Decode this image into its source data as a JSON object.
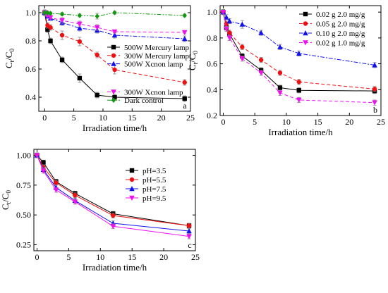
{
  "chart_data": [
    {
      "panel": "a",
      "type": "line",
      "ylabel_main": "C",
      "ylabel_sub1": "t",
      "ylabel_sep": "/C",
      "ylabel_sub2": "0",
      "xlabel": "Irradiation time/h",
      "xlim": [
        -1,
        25
      ],
      "ylim": [
        0.3,
        1.05
      ],
      "xticks": [
        0,
        5,
        10,
        15,
        20,
        25
      ],
      "yticks": [
        0.4,
        0.6,
        0.8,
        1.0
      ],
      "ytick_labels": [
        "0.4",
        "0.6",
        "0.8",
        "1.0"
      ],
      "legend_position": "right",
      "series": [
        {
          "name": "500W Mercury lamp",
          "color": "#000000",
          "marker": "square",
          "dash": "solid",
          "x": [
            0,
            0.5,
            1,
            3,
            6,
            9,
            12,
            24
          ],
          "y": [
            1.0,
            0.88,
            0.8,
            0.665,
            0.535,
            0.415,
            0.4,
            0.39
          ],
          "err": [
            0.02,
            0.02,
            0.02,
            0.02,
            0.03,
            0.02,
            0.02,
            0.02
          ]
        },
        {
          "name": "300W Mercury lamp",
          "color": "#ee1111",
          "marker": "circle",
          "dash": "dash",
          "x": [
            0,
            0.5,
            1,
            3,
            6,
            9,
            12,
            24
          ],
          "y": [
            1.0,
            0.91,
            0.895,
            0.84,
            0.795,
            0.7,
            0.595,
            0.505
          ],
          "err": [
            0.02,
            0.02,
            0.02,
            0.03,
            0.03,
            0.02,
            0.03,
            0.02
          ]
        },
        {
          "name": "500W Xcnon lamp",
          "color": "#1111ee",
          "marker": "triangle-up",
          "dash": "dashdot",
          "x": [
            0,
            0.5,
            1,
            3,
            6,
            9,
            12,
            24
          ],
          "y": [
            1.0,
            0.975,
            0.96,
            0.93,
            0.89,
            0.875,
            0.84,
            0.815
          ],
          "err": [
            0.02,
            0.01,
            0.01,
            0.02,
            0.02,
            0.02,
            0.02,
            0.02
          ]
        },
        {
          "name": "300W Xcnon lamp",
          "color": "#ee11ee",
          "marker": "triangle-down",
          "dash": "dash",
          "x": [
            0,
            0.5,
            1,
            3,
            6,
            9,
            12,
            24
          ],
          "y": [
            1.0,
            0.98,
            0.965,
            0.945,
            0.92,
            0.895,
            0.865,
            0.86
          ],
          "err": [
            0.02,
            0.01,
            0.01,
            0.02,
            0.02,
            0.02,
            0.01,
            0.01
          ]
        },
        {
          "name": "Dark control",
          "color": "#119911",
          "marker": "diamond",
          "dash": "dashdotdot",
          "x": [
            0,
            0.5,
            1,
            3,
            6,
            9,
            12,
            24
          ],
          "y": [
            1.0,
            1.0,
            0.995,
            0.99,
            0.98,
            0.975,
            1.0,
            0.98
          ],
          "err": [
            0.01,
            0.01,
            0.01,
            0.01,
            0.01,
            0.02,
            0.01,
            0.01
          ]
        }
      ]
    },
    {
      "panel": "b",
      "type": "line",
      "ylabel_main": "C",
      "ylabel_sub1": "t",
      "ylabel_sep": "/C",
      "ylabel_sub2": "0",
      "xlabel": "Irradiation time/h",
      "xlim": [
        -0.5,
        25
      ],
      "ylim": [
        0.2,
        1.05
      ],
      "xticks": [
        0,
        5,
        10,
        15,
        20,
        25
      ],
      "yticks": [
        0.2,
        0.4,
        0.6,
        0.8,
        1.0
      ],
      "ytick_labels": [
        "0.2",
        "0.4",
        "0.6",
        "0.8",
        "1.0"
      ],
      "legend_position": "top-right",
      "series": [
        {
          "name": "0.02 g 2.0 mg/g",
          "color": "#000000",
          "marker": "square",
          "dash": "solid",
          "x": [
            0,
            0.5,
            1,
            3,
            6,
            9,
            12,
            24
          ],
          "y": [
            1.0,
            0.88,
            0.83,
            0.66,
            0.55,
            0.415,
            0.395,
            0.39
          ],
          "err": [
            0.02,
            0.02,
            0.02,
            0.02,
            0.02,
            0.02,
            0.02,
            0.02
          ]
        },
        {
          "name": "0.05 g 2.0 mg/g",
          "color": "#ee1111",
          "marker": "circle",
          "dash": "dash",
          "x": [
            0,
            0.5,
            1,
            3,
            6,
            9,
            12,
            24
          ],
          "y": [
            1.0,
            0.91,
            0.84,
            0.73,
            0.63,
            0.53,
            0.46,
            0.405
          ],
          "err": [
            0.02,
            0.02,
            0.02,
            0.02,
            0.02,
            0.02,
            0.02,
            0.02
          ]
        },
        {
          "name": "0.10 g 2.0 mg/g",
          "color": "#1111ee",
          "marker": "triangle-up",
          "dash": "dashdot",
          "x": [
            0,
            0.5,
            1,
            3,
            6,
            9,
            12,
            24
          ],
          "y": [
            1.0,
            0.96,
            0.93,
            0.905,
            0.84,
            0.73,
            0.68,
            0.59
          ],
          "err": [
            0.02,
            0.02,
            0.02,
            0.03,
            0.02,
            0.02,
            0.02,
            0.02
          ]
        },
        {
          "name": "0.02 g 1.0 mg/g",
          "color": "#ee11ee",
          "marker": "triangle-down",
          "dash": "dash",
          "x": [
            0,
            0.5,
            1,
            3,
            6,
            9,
            12,
            24
          ],
          "y": [
            1.0,
            0.87,
            0.8,
            0.64,
            0.53,
            0.375,
            0.32,
            0.3
          ],
          "err": [
            0.02,
            0.02,
            0.02,
            0.02,
            0.02,
            0.02,
            0.02,
            0.02
          ]
        }
      ]
    },
    {
      "panel": "c",
      "type": "line",
      "ylabel_main": "C",
      "ylabel_sub1": "t",
      "ylabel_sep": "/C",
      "ylabel_sub2": "0",
      "xlabel": "Irradiation time/h",
      "xlim": [
        -0.5,
        25
      ],
      "ylim": [
        0.2,
        1.05
      ],
      "xticks": [
        0,
        5,
        10,
        15,
        20,
        25
      ],
      "yticks": [
        0.25,
        0.5,
        0.75,
        1.0
      ],
      "ytick_labels": [
        "0.25",
        "0.50",
        "0.75",
        "1.00"
      ],
      "legend_position": "top-right",
      "series": [
        {
          "name": "pH=3.5",
          "color": "#000000",
          "marker": "square",
          "dash": "solid",
          "x": [
            0,
            1,
            3,
            6,
            12,
            24
          ],
          "y": [
            1.0,
            0.94,
            0.78,
            0.68,
            0.51,
            0.41
          ],
          "err": [
            0.02,
            0.02,
            0.02,
            0.02,
            0.02,
            0.02
          ]
        },
        {
          "name": "pH=5.5",
          "color": "#ee1111",
          "marker": "circle",
          "dash": "solid",
          "x": [
            0,
            1,
            3,
            6,
            12,
            24
          ],
          "y": [
            1.0,
            0.9,
            0.77,
            0.665,
            0.495,
            0.41
          ],
          "err": [
            0.02,
            0.02,
            0.02,
            0.02,
            0.02,
            0.02
          ]
        },
        {
          "name": "pH=7.5",
          "color": "#1111ee",
          "marker": "triangle-up",
          "dash": "solid",
          "x": [
            0,
            1,
            3,
            6,
            12,
            24
          ],
          "y": [
            1.0,
            0.88,
            0.73,
            0.62,
            0.43,
            0.365
          ],
          "err": [
            0.02,
            0.02,
            0.02,
            0.02,
            0.02,
            0.02
          ]
        },
        {
          "name": "pH=9.5",
          "color": "#ee11ee",
          "marker": "triangle-down",
          "dash": "solid",
          "x": [
            0,
            1,
            3,
            6,
            12,
            24
          ],
          "y": [
            1.0,
            0.87,
            0.71,
            0.61,
            0.405,
            0.32
          ],
          "err": [
            0.02,
            0.02,
            0.02,
            0.02,
            0.02,
            0.02
          ]
        }
      ]
    }
  ]
}
